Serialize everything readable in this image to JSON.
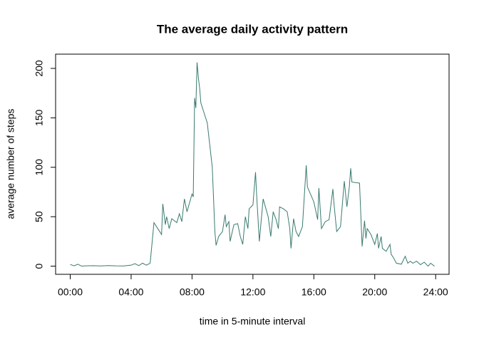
{
  "chart_data": {
    "type": "line",
    "title": "The average daily activity pattern",
    "x_label": "time in 5-minute interval",
    "y_label": "average number of steps",
    "x": [
      0,
      0.25,
      0.5,
      0.75,
      1,
      1.5,
      2,
      2.5,
      3,
      3.5,
      4,
      4.25,
      4.5,
      4.75,
      5,
      5.25,
      5.5,
      5.75,
      6,
      6.08,
      6.25,
      6.33,
      6.5,
      6.67,
      7,
      7.17,
      7.33,
      7.5,
      7.67,
      8,
      8.08,
      8.17,
      8.25,
      8.33,
      8.42,
      8.5,
      8.58,
      9,
      9.33,
      9.5,
      9.58,
      9.75,
      10,
      10.17,
      10.25,
      10.42,
      10.5,
      10.75,
      11,
      11.17,
      11.33,
      11.5,
      11.67,
      11.75,
      12,
      12.17,
      12.25,
      12.42,
      12.67,
      13,
      13.17,
      13.33,
      13.5,
      13.67,
      13.75,
      14,
      14.25,
      14.42,
      14.5,
      14.67,
      14.83,
      15,
      15.25,
      15.5,
      15.58,
      16,
      16.25,
      16.33,
      16.5,
      16.75,
      17,
      17.25,
      17.33,
      17.5,
      17.75,
      18,
      18.17,
      18.33,
      18.42,
      18.5,
      19,
      19.17,
      19.33,
      19.42,
      19.5,
      19.75,
      20,
      20.17,
      20.25,
      20.42,
      20.5,
      20.75,
      21,
      21.08,
      21.25,
      21.42,
      21.75,
      22,
      22.17,
      22.33,
      22.5,
      22.75,
      23,
      23.25,
      23.5,
      23.67,
      23.92
    ],
    "series": [
      {
        "name": "average number of steps",
        "color": "#3a7a6e",
        "values": [
          1.7,
          0.3,
          2,
          0,
          0.3,
          0.5,
          0.2,
          0.6,
          0.3,
          0.2,
          1,
          2.5,
          0.5,
          3,
          1,
          3,
          44,
          38,
          32,
          63,
          42,
          50,
          38,
          48,
          44,
          53,
          45,
          68,
          55,
          73,
          70,
          170,
          160,
          206,
          190,
          180,
          165,
          145,
          100,
          35,
          21,
          30,
          35,
          52,
          40,
          45,
          25,
          42,
          43,
          30,
          22,
          50,
          38,
          58,
          62,
          95,
          70,
          25,
          68,
          50,
          30,
          55,
          48,
          38,
          60,
          58,
          55,
          38,
          18,
          48,
          35,
          30,
          40,
          102,
          80,
          65,
          47,
          79,
          38,
          45,
          47,
          78,
          62,
          35,
          40,
          86,
          60,
          80,
          99,
          85,
          84,
          20,
          46,
          28,
          38,
          32,
          22,
          33,
          18,
          30,
          18,
          15,
          22,
          12,
          8,
          3,
          2,
          10,
          3,
          5,
          3,
          5,
          1.5,
          4,
          0,
          3,
          0
        ]
      }
    ],
    "xlim": [
      -0.96,
      24.88
    ],
    "ylim": [
      -8.25,
      214.4
    ],
    "xticks": [
      {
        "value": 0,
        "label": "00:00"
      },
      {
        "value": 4,
        "label": "04:00"
      },
      {
        "value": 8,
        "label": "08:00"
      },
      {
        "value": 12,
        "label": "12:00"
      },
      {
        "value": 16,
        "label": "16:00"
      },
      {
        "value": 20,
        "label": "20:00"
      },
      {
        "value": 24,
        "label": "24:00"
      }
    ],
    "yticks": [
      0,
      50,
      100,
      150,
      200
    ]
  }
}
